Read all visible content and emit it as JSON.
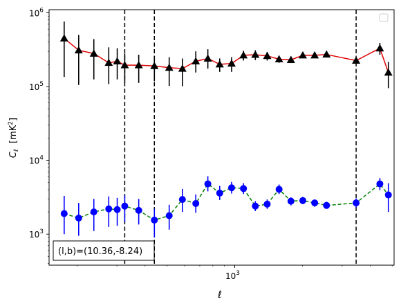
{
  "chart_data": {
    "type": "line",
    "xlabel": "ℓ",
    "ylabel_main": "C",
    "ylabel_sub": "ℓ",
    "ylabel_unit_a": "[mK",
    "ylabel_unit_sup": "2",
    "ylabel_unit_b": "]",
    "xscale": "log",
    "yscale": "log",
    "xlim": [
      150,
      5100
    ],
    "ylim": [
      380,
      1100000
    ],
    "grid": false,
    "legend_location": "top-right",
    "legend_entries": [],
    "x_ticks": [
      {
        "value": 1000,
        "base": "10",
        "exp": "3"
      }
    ],
    "y_ticks": [
      {
        "value": 1000,
        "base": "10",
        "exp": "3"
      },
      {
        "value": 10000,
        "base": "10",
        "exp": "4"
      },
      {
        "value": 100000,
        "base": "10",
        "exp": "5"
      },
      {
        "value": 1000000,
        "base": "10",
        "exp": "6"
      }
    ],
    "vlines": [
      325,
      440,
      3460
    ],
    "annotation": "(l,b)=(10.36,-8.24)",
    "series": [
      {
        "color": "#e00000",
        "linestyle": "solid",
        "marker": "triangle",
        "marker_color": "#000000",
        "errorbar_color": "#000000",
        "points": [
          {
            "x": 175,
            "y": 450000,
            "lo": 135000,
            "hi": 760000
          },
          {
            "x": 203,
            "y": 310000,
            "lo": 105000,
            "hi": 500000
          },
          {
            "x": 237,
            "y": 280000,
            "lo": 125000,
            "hi": 440000
          },
          {
            "x": 276,
            "y": 210000,
            "lo": 108000,
            "hi": 340000
          },
          {
            "x": 301,
            "y": 220000,
            "lo": 125000,
            "hi": 330000
          },
          {
            "x": 325,
            "y": 195000,
            "lo": 113000,
            "hi": 280000
          },
          {
            "x": 375,
            "y": 195000,
            "lo": 112000,
            "hi": 270000
          },
          {
            "x": 440,
            "y": 190000,
            "lo": 118000,
            "hi": 260000
          },
          {
            "x": 512,
            "y": 180000,
            "lo": 102000,
            "hi": 250000
          },
          {
            "x": 586,
            "y": 175000,
            "lo": 101000,
            "hi": 240000
          },
          {
            "x": 672,
            "y": 220000,
            "lo": 155000,
            "hi": 300000
          },
          {
            "x": 760,
            "y": 240000,
            "lo": 175000,
            "hi": 320000
          },
          {
            "x": 858,
            "y": 200000,
            "lo": 158000,
            "hi": 240000
          },
          {
            "x": 969,
            "y": 205000,
            "lo": 158000,
            "hi": 250000
          },
          {
            "x": 1094,
            "y": 265000,
            "lo": 225000,
            "hi": 305000
          },
          {
            "x": 1235,
            "y": 270000,
            "lo": 228000,
            "hi": 310000
          },
          {
            "x": 1394,
            "y": 260000,
            "lo": 225000,
            "hi": 295000
          },
          {
            "x": 1574,
            "y": 235000,
            "lo": 210000,
            "hi": 260000
          },
          {
            "x": 1777,
            "y": 230000,
            "lo": 208000,
            "hi": 255000
          },
          {
            "x": 2006,
            "y": 265000,
            "lo": 245000,
            "hi": 285000
          },
          {
            "x": 2265,
            "y": 265000,
            "lo": 245000,
            "hi": 285000
          },
          {
            "x": 2557,
            "y": 272000,
            "lo": 252000,
            "hi": 292000
          },
          {
            "x": 3460,
            "y": 225000,
            "lo": 205000,
            "hi": 245000
          },
          {
            "x": 4410,
            "y": 330000,
            "lo": 270000,
            "hi": 390000
          },
          {
            "x": 4810,
            "y": 155000,
            "lo": 95000,
            "hi": 215000
          }
        ]
      },
      {
        "color": "#008000",
        "linestyle": "dashed",
        "marker": "circle",
        "marker_color": "#0000ff",
        "errorbar_color": "#0000ff",
        "points": [
          {
            "x": 175,
            "y": 1900,
            "lo": 1000,
            "hi": 3300
          },
          {
            "x": 203,
            "y": 1650,
            "lo": 950,
            "hi": 2650
          },
          {
            "x": 237,
            "y": 2000,
            "lo": 1100,
            "hi": 3000
          },
          {
            "x": 276,
            "y": 2200,
            "lo": 1250,
            "hi": 3250
          },
          {
            "x": 301,
            "y": 2150,
            "lo": 1300,
            "hi": 3100
          },
          {
            "x": 325,
            "y": 2400,
            "lo": 1450,
            "hi": 3350
          },
          {
            "x": 375,
            "y": 2100,
            "lo": 1350,
            "hi": 3000
          },
          {
            "x": 440,
            "y": 1550,
            "lo": 900,
            "hi": 2200
          },
          {
            "x": 512,
            "y": 1780,
            "lo": 1150,
            "hi": 2500
          },
          {
            "x": 586,
            "y": 2950,
            "lo": 2000,
            "hi": 4100
          },
          {
            "x": 672,
            "y": 2600,
            "lo": 1950,
            "hi": 3450
          },
          {
            "x": 760,
            "y": 4800,
            "lo": 3800,
            "hi": 6100
          },
          {
            "x": 858,
            "y": 3600,
            "lo": 2900,
            "hi": 4500
          },
          {
            "x": 969,
            "y": 4250,
            "lo": 3550,
            "hi": 5100
          },
          {
            "x": 1094,
            "y": 4150,
            "lo": 3500,
            "hi": 4900
          },
          {
            "x": 1235,
            "y": 2400,
            "lo": 2050,
            "hi": 2800
          },
          {
            "x": 1394,
            "y": 2550,
            "lo": 2200,
            "hi": 2950
          },
          {
            "x": 1574,
            "y": 4050,
            "lo": 3500,
            "hi": 4700
          },
          {
            "x": 1777,
            "y": 2800,
            "lo": 2450,
            "hi": 3150
          },
          {
            "x": 2006,
            "y": 2850,
            "lo": 2550,
            "hi": 3200
          },
          {
            "x": 2265,
            "y": 2650,
            "lo": 2350,
            "hi": 2950
          },
          {
            "x": 2557,
            "y": 2450,
            "lo": 2200,
            "hi": 2750
          },
          {
            "x": 3460,
            "y": 2650,
            "lo": 2300,
            "hi": 3050
          },
          {
            "x": 4410,
            "y": 4800,
            "lo": 3950,
            "hi": 5750
          },
          {
            "x": 4810,
            "y": 3400,
            "lo": 2000,
            "hi": 4900
          }
        ]
      }
    ]
  }
}
